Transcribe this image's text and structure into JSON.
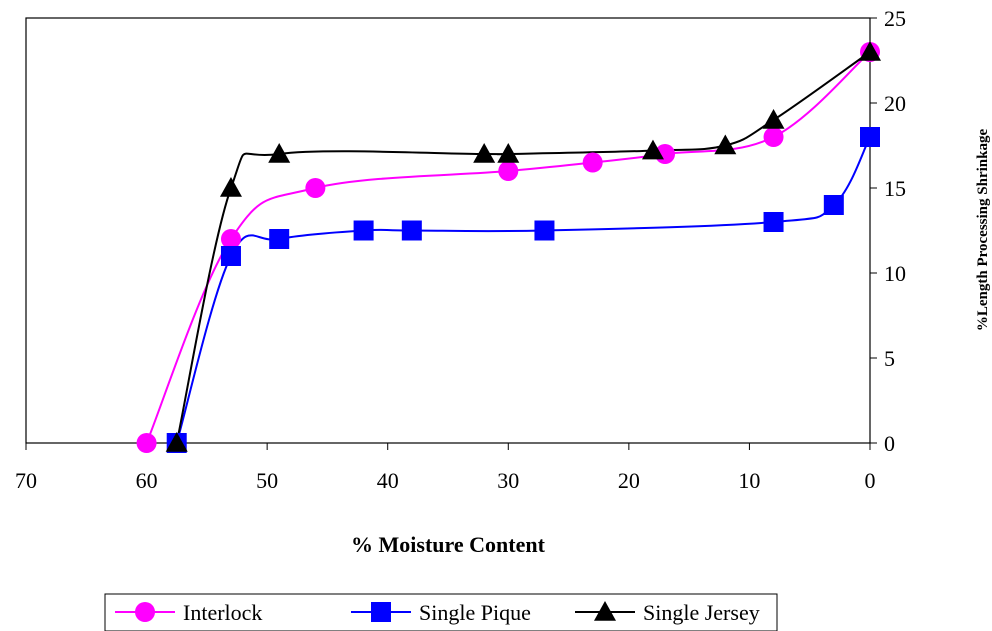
{
  "chart_data": {
    "type": "line",
    "title": "",
    "xlabel": "% Moisture Content",
    "ylabel": "%Length Processing Shrinkage",
    "xlim": [
      70,
      0
    ],
    "ylim": [
      0,
      25
    ],
    "x_ticks": [
      "70",
      "60",
      "50",
      "40",
      "30",
      "20",
      "10",
      "0"
    ],
    "y_ticks": [
      "0",
      "5",
      "10",
      "15",
      "20",
      "25"
    ],
    "x_reversed": true,
    "y_axis_side": "right",
    "grid": false,
    "legend_position": "bottom",
    "series": [
      {
        "name": "Interlock",
        "color": "#FF00FF",
        "marker": "circle",
        "x": [
          60,
          53,
          46,
          30,
          23,
          17,
          8,
          0
        ],
        "y": [
          0,
          12,
          15,
          16,
          16.5,
          17,
          18,
          23
        ]
      },
      {
        "name": "Single Pique",
        "color": "#0000FF",
        "marker": "square",
        "x": [
          57.5,
          53,
          49,
          42,
          38,
          27,
          8,
          3,
          0
        ],
        "y": [
          0,
          11,
          12,
          12.5,
          12.5,
          12.5,
          13,
          14,
          18
        ]
      },
      {
        "name": "Single Jersey",
        "color": "#000000",
        "marker": "triangle",
        "x": [
          57.5,
          53,
          49,
          32,
          30,
          18,
          12,
          8,
          0
        ],
        "y": [
          0,
          15,
          17,
          17,
          17,
          17.2,
          17.5,
          19,
          23
        ]
      }
    ]
  }
}
